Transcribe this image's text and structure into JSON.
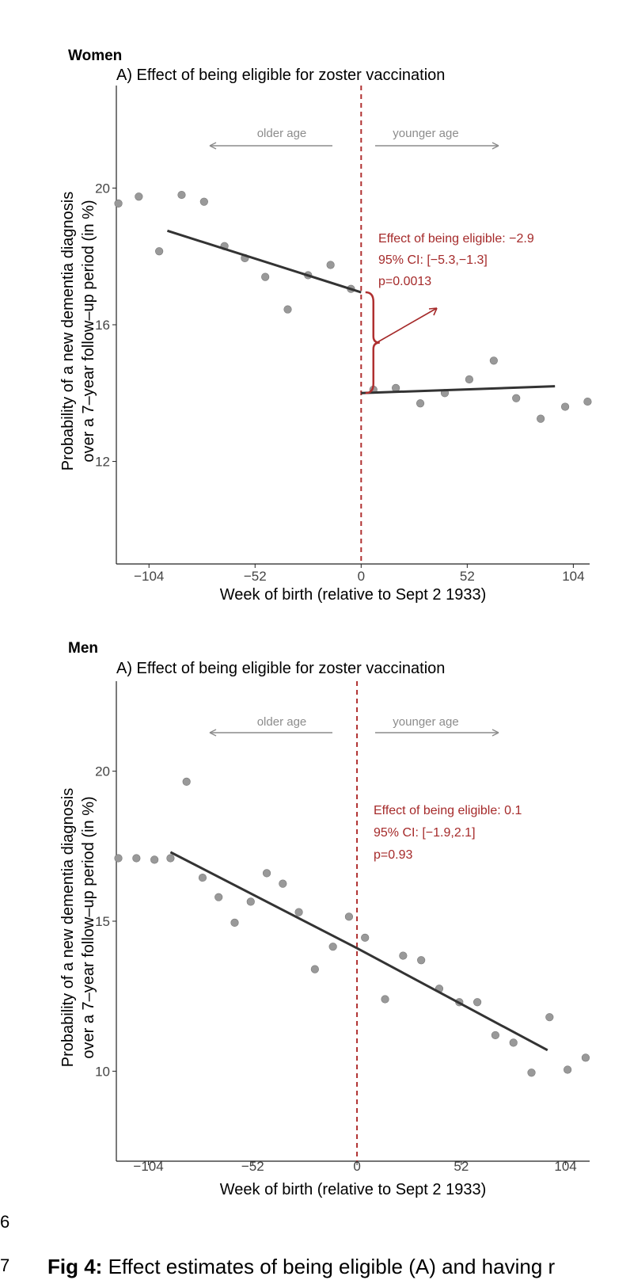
{
  "chart_data": [
    {
      "type": "scatter",
      "group_label": "Women",
      "title": "A) Effect of being eligible for zoster vaccination",
      "xlabel": "Week of birth (relative to Sept 2 1933)",
      "ylabel_line1": "Probability of a new dementia diagnosis",
      "ylabel_line2": "over a 7–year follow–up period (in %)",
      "xlim": [
        -120,
        112
      ],
      "ylim": [
        9.0,
        23.0
      ],
      "x_ticks": [
        -104,
        -52,
        0,
        52,
        104
      ],
      "x_tick_labels": [
        "−104",
        "−52",
        "0",
        "52",
        "104"
      ],
      "y_ticks": [
        12,
        16,
        20
      ],
      "y_tick_labels": [
        "12",
        "16",
        "20"
      ],
      "grid": false,
      "cutoff_x": 0,
      "points": [
        {
          "x": -119,
          "y": 19.55
        },
        {
          "x": -109,
          "y": 19.75
        },
        {
          "x": -99,
          "y": 18.15
        },
        {
          "x": -88,
          "y": 19.8
        },
        {
          "x": -77,
          "y": 19.6
        },
        {
          "x": -67,
          "y": 18.3
        },
        {
          "x": -57,
          "y": 17.95
        },
        {
          "x": -47,
          "y": 17.4
        },
        {
          "x": -36,
          "y": 16.45
        },
        {
          "x": -26,
          "y": 17.45
        },
        {
          "x": -15,
          "y": 17.75
        },
        {
          "x": -5,
          "y": 17.05
        },
        {
          "x": 6,
          "y": 14.1
        },
        {
          "x": 17,
          "y": 14.15
        },
        {
          "x": 29,
          "y": 13.7
        },
        {
          "x": 41,
          "y": 14.0
        },
        {
          "x": 53,
          "y": 14.4
        },
        {
          "x": 65,
          "y": 14.95
        },
        {
          "x": 76,
          "y": 13.85
        },
        {
          "x": 88,
          "y": 13.25
        },
        {
          "x": 100,
          "y": 13.6
        },
        {
          "x": 111,
          "y": 13.75
        }
      ],
      "fit_left": {
        "x": [
          -95,
          0
        ],
        "y": [
          18.75,
          16.95
        ]
      },
      "fit_right": {
        "x": [
          0,
          95
        ],
        "y": [
          14.0,
          14.2
        ]
      },
      "arrow_older": "older age",
      "arrow_younger": "younger age",
      "annotation": [
        "Effect of being eligible: −2.9",
        "95% CI: [−5.3,−1.3]",
        "p=0.0013"
      ],
      "brace": {
        "x": 6,
        "y_top": 16.95,
        "y_bottom": 14.0
      },
      "colors": {
        "points": "#999999",
        "fit": "#333333",
        "cutoff": "#b03030",
        "annotation": "#a52a2a",
        "arrows": "#8c8c8c"
      }
    },
    {
      "type": "scatter",
      "group_label": "Men",
      "title": "A) Effect of being eligible for zoster vaccination",
      "xlabel": "Week of birth (relative to Sept 2 1933)",
      "ylabel_line1": "Probability of a new dementia diagnosis",
      "ylabel_line2": "over a 7–year follow–up period (in %)",
      "xlim": [
        -120,
        116
      ],
      "ylim": [
        7.0,
        23.0
      ],
      "x_ticks": [
        -104,
        -52,
        0,
        52,
        104
      ],
      "x_tick_labels": [
        "−104",
        "−52",
        "0",
        "52",
        "104"
      ],
      "y_ticks": [
        10,
        15,
        20
      ],
      "y_tick_labels": [
        "10",
        "15",
        "20"
      ],
      "grid": false,
      "cutoff_x": 0,
      "points": [
        {
          "x": -119,
          "y": 17.1
        },
        {
          "x": -110,
          "y": 17.1
        },
        {
          "x": -101,
          "y": 17.05
        },
        {
          "x": -93,
          "y": 17.1
        },
        {
          "x": -85,
          "y": 19.65
        },
        {
          "x": -77,
          "y": 16.45
        },
        {
          "x": -69,
          "y": 15.8
        },
        {
          "x": -61,
          "y": 14.95
        },
        {
          "x": -53,
          "y": 15.65
        },
        {
          "x": -45,
          "y": 16.6
        },
        {
          "x": -37,
          "y": 16.25
        },
        {
          "x": -29,
          "y": 15.3
        },
        {
          "x": -21,
          "y": 13.4
        },
        {
          "x": -12,
          "y": 14.15
        },
        {
          "x": -4,
          "y": 15.15
        },
        {
          "x": 4,
          "y": 14.45
        },
        {
          "x": 14,
          "y": 12.4
        },
        {
          "x": 23,
          "y": 13.85
        },
        {
          "x": 32,
          "y": 13.7
        },
        {
          "x": 41,
          "y": 12.75
        },
        {
          "x": 51,
          "y": 12.3
        },
        {
          "x": 60,
          "y": 12.3
        },
        {
          "x": 69,
          "y": 11.2
        },
        {
          "x": 78,
          "y": 10.95
        },
        {
          "x": 87,
          "y": 9.95
        },
        {
          "x": 96,
          "y": 11.8
        },
        {
          "x": 105,
          "y": 10.05
        },
        {
          "x": 114,
          "y": 10.45
        }
      ],
      "fit_left": {
        "x": [
          -93,
          0
        ],
        "y": [
          17.3,
          14.1
        ]
      },
      "fit_right": {
        "x": [
          0,
          95
        ],
        "y": [
          14.1,
          10.7
        ]
      },
      "arrow_older": "older age",
      "arrow_younger": "younger age",
      "annotation": [
        "Effect of being eligible: 0.1",
        "95% CI: [−1.9,2.1]",
        "p=0.93"
      ],
      "colors": {
        "points": "#999999",
        "fit": "#333333",
        "cutoff": "#b03030",
        "annotation": "#a52a2a",
        "arrows": "#8c8c8c"
      }
    }
  ],
  "line_numbers": [
    "6",
    "7"
  ],
  "caption": {
    "bold": "Fig 4:",
    "text": " Effect estimates of being eligible (A) and having r"
  }
}
